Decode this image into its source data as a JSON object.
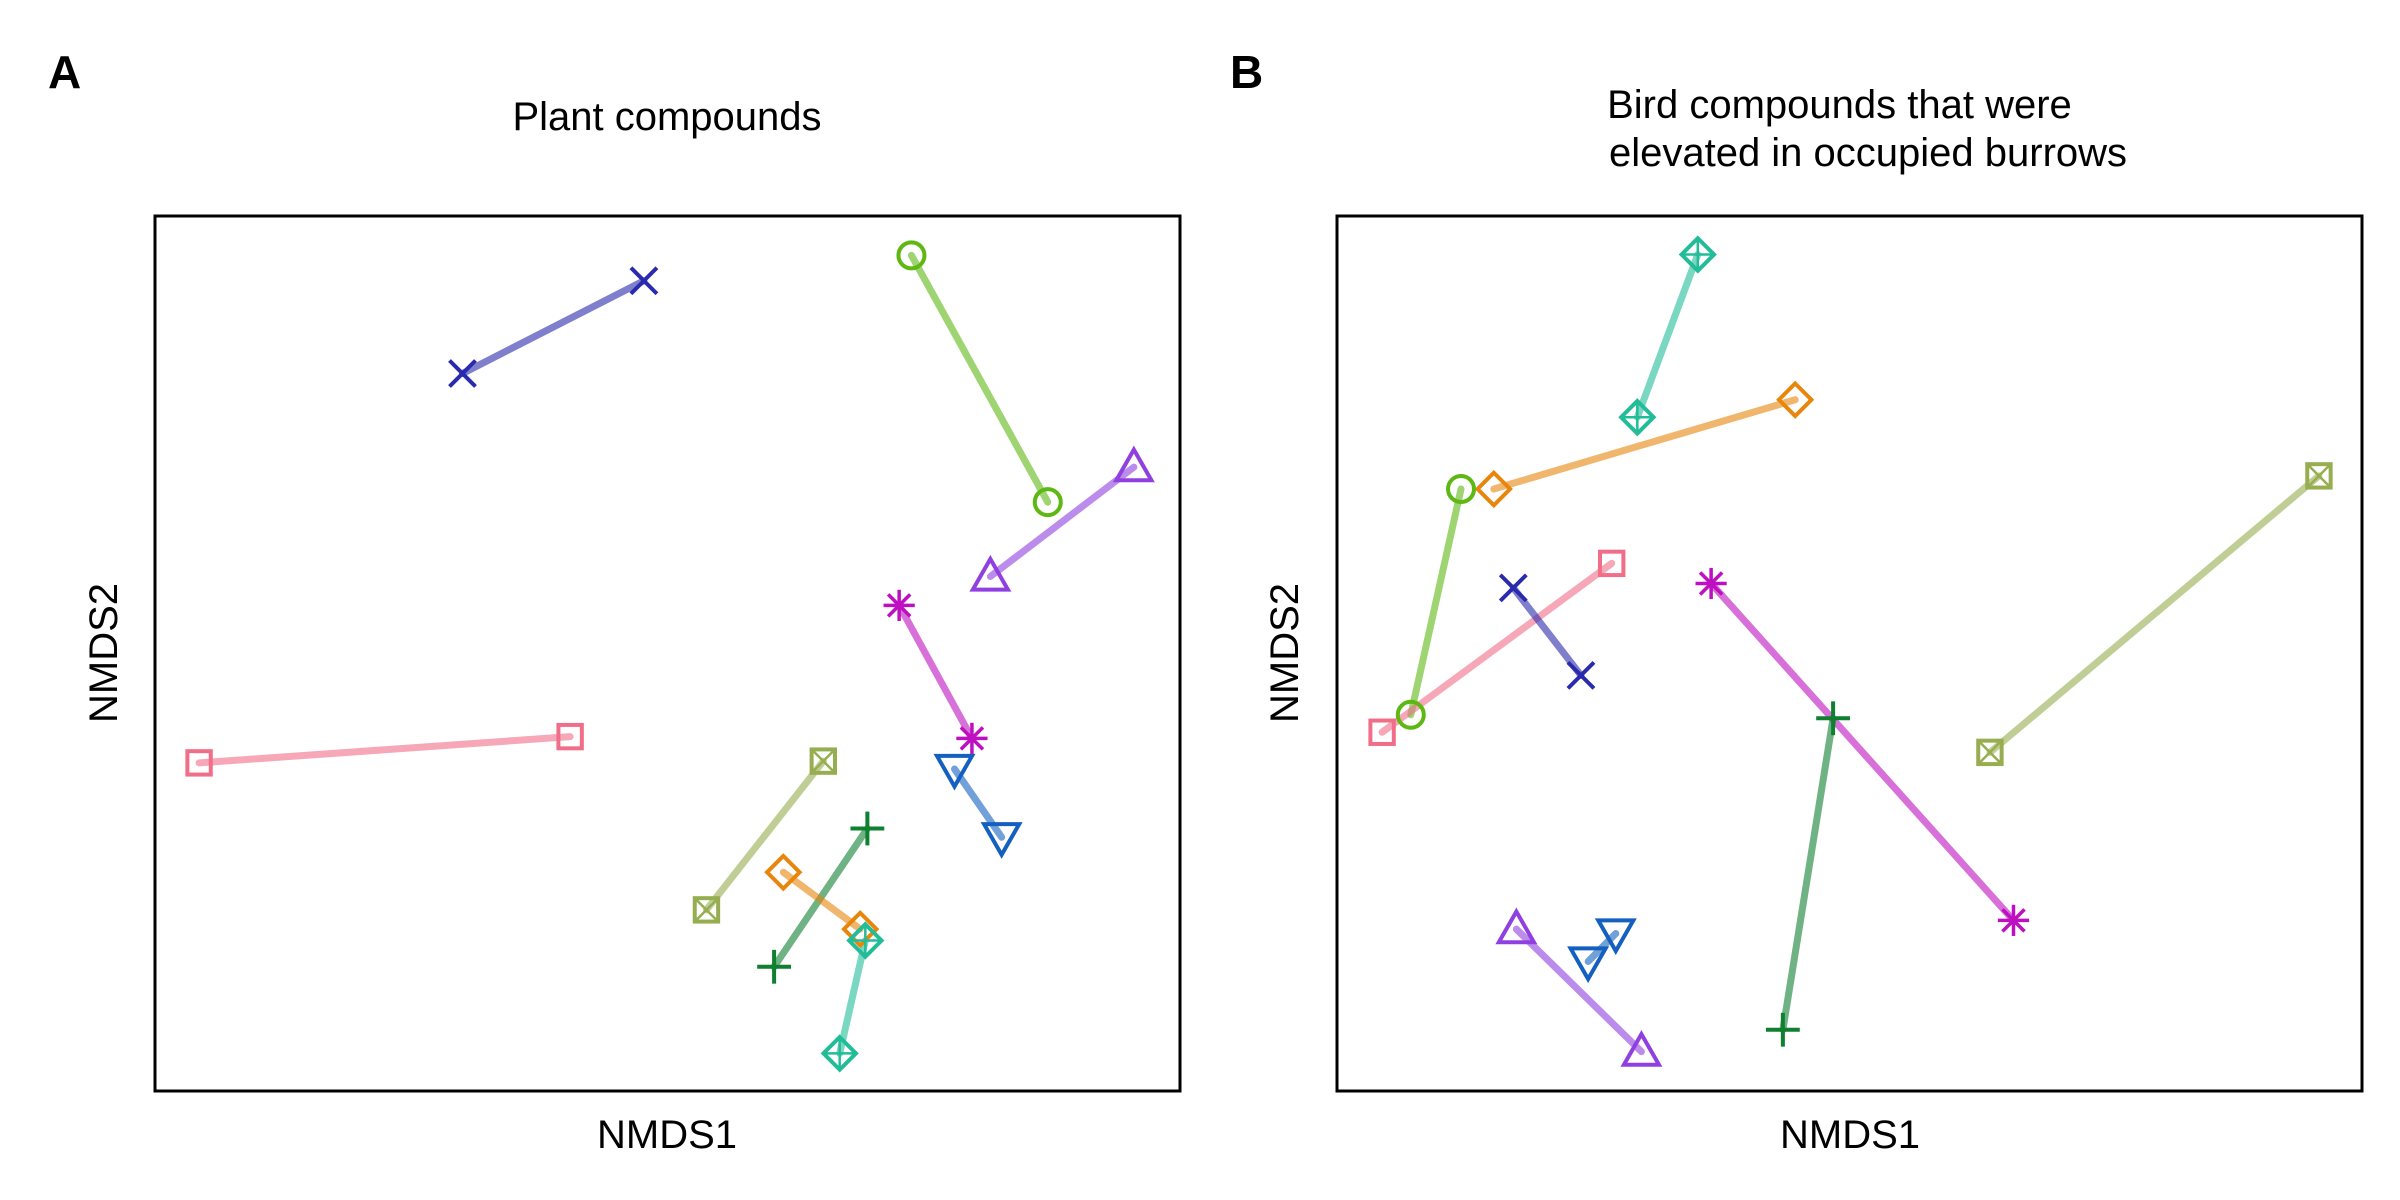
{
  "chart_data": [
    {
      "panel_label": "A",
      "type": "scatter",
      "title": [
        "Plant compounds"
      ],
      "xlabel": "NMDS1",
      "ylabel": "NMDS2",
      "xlim": [
        0,
        100
      ],
      "ylim": [
        0,
        100
      ],
      "grid": false,
      "pairs": [
        {
          "shape": "x-cross",
          "color": "#2A2AAE",
          "points": [
            [
              30,
              82
            ],
            [
              47.7,
              92.6
            ]
          ]
        },
        {
          "shape": "circle",
          "color": "#5DB813",
          "points": [
            [
              73.8,
              95.5
            ],
            [
              87.1,
              67.3
            ]
          ]
        },
        {
          "shape": "triangle-up",
          "color": "#9040E0",
          "points": [
            [
              95.5,
              71.3
            ],
            [
              81.5,
              58.8
            ]
          ]
        },
        {
          "shape": "asterisk",
          "color": "#BE10C0",
          "points": [
            [
              72.6,
              55.5
            ],
            [
              79.7,
              40.3
            ]
          ]
        },
        {
          "shape": "square",
          "color": "#F06E88",
          "points": [
            [
              4.3,
              37.5
            ],
            [
              40.5,
              40.5
            ]
          ]
        },
        {
          "shape": "square-x",
          "color": "#96AE50",
          "points": [
            [
              65.2,
              37.7
            ],
            [
              53.8,
              20.7
            ]
          ]
        },
        {
          "shape": "triangle-down",
          "color": "#1460C0",
          "points": [
            [
              78.0,
              36.8
            ],
            [
              82.6,
              29.0
            ]
          ]
        },
        {
          "shape": "plus",
          "color": "#0F7F30",
          "points": [
            [
              69.5,
              30.0
            ],
            [
              60.4,
              14.2
            ]
          ]
        },
        {
          "shape": "diamond",
          "color": "#E8860C",
          "points": [
            [
              61.3,
              25.0
            ],
            [
              68.8,
              18.5
            ]
          ]
        },
        {
          "shape": "diamond-plus",
          "color": "#22BD98",
          "points": [
            [
              69.3,
              17.2
            ],
            [
              66.8,
              4.3
            ]
          ]
        }
      ]
    },
    {
      "panel_label": "B",
      "type": "scatter",
      "title": [
        "Bird compounds that were",
        "elevated in occupied burrows"
      ],
      "xlabel": "NMDS1",
      "ylabel": "NMDS2",
      "xlim": [
        0,
        100
      ],
      "ylim": [
        0,
        100
      ],
      "grid": false,
      "pairs": [
        {
          "shape": "diamond-plus",
          "color": "#22BD98",
          "points": [
            [
              35.2,
              95.6
            ],
            [
              29.3,
              77.0
            ]
          ]
        },
        {
          "shape": "diamond",
          "color": "#E8860C",
          "points": [
            [
              44.7,
              79.0
            ],
            [
              15.3,
              68.8
            ]
          ]
        },
        {
          "shape": "circle",
          "color": "#5DB813",
          "points": [
            [
              12.1,
              68.8
            ],
            [
              7.2,
              43.0
            ]
          ]
        },
        {
          "shape": "square",
          "color": "#F06E88",
          "points": [
            [
              26.8,
              60.3
            ],
            [
              4.4,
              41.0
            ]
          ]
        },
        {
          "shape": "x-cross",
          "color": "#2A2AAE",
          "points": [
            [
              17.2,
              57.5
            ],
            [
              23.8,
              47.5
            ]
          ]
        },
        {
          "shape": "asterisk",
          "color": "#BE10C0",
          "points": [
            [
              36.5,
              58.0
            ],
            [
              66.0,
              19.5
            ]
          ]
        },
        {
          "shape": "plus",
          "color": "#0F7F30",
          "points": [
            [
              48.4,
              42.6
            ],
            [
              43.5,
              7.0
            ]
          ]
        },
        {
          "shape": "square-x",
          "color": "#96AE50",
          "points": [
            [
              95.8,
              70.3
            ],
            [
              63.7,
              38.7
            ]
          ]
        },
        {
          "shape": "triangle-up",
          "color": "#9040E0",
          "points": [
            [
              17.5,
              18.5
            ],
            [
              29.7,
              4.5
            ]
          ]
        },
        {
          "shape": "triangle-down",
          "color": "#1460C0",
          "points": [
            [
              27.2,
              18.0
            ],
            [
              24.5,
              14.8
            ]
          ]
        }
      ]
    }
  ]
}
